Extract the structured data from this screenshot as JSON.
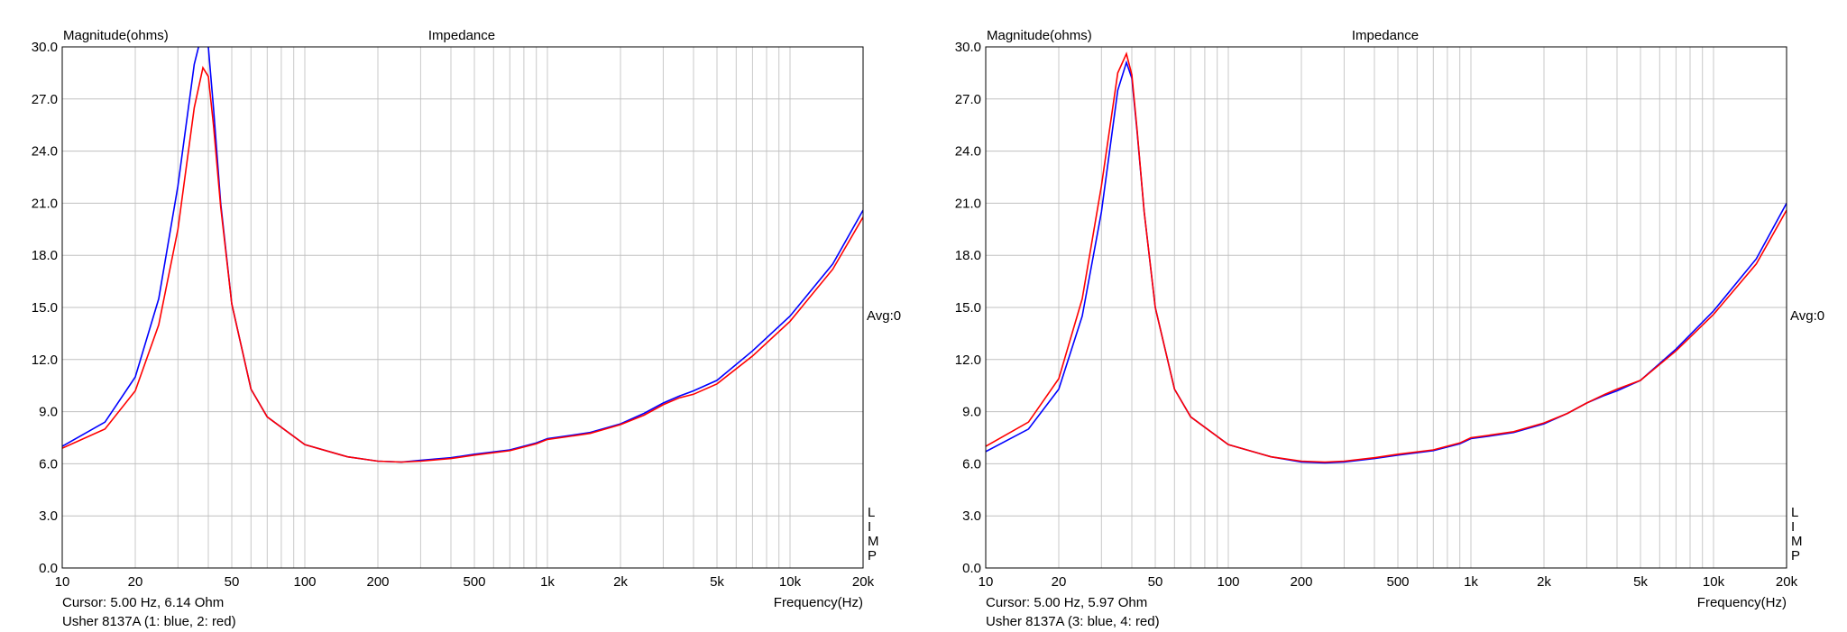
{
  "chart_data": [
    {
      "type": "line",
      "title": "Impedance",
      "ylabel": "Magnitude(ohms)",
      "xlabel": "Frequency(Hz)",
      "xscale": "log",
      "xlim": [
        10,
        20000
      ],
      "ylim": [
        0,
        30
      ],
      "grid": true,
      "xticks": [
        "10",
        "20",
        "50",
        "100",
        "200",
        "500",
        "1k",
        "2k",
        "5k",
        "10k",
        "20k"
      ],
      "yticks": [
        "0.0",
        "3.0",
        "6.0",
        "9.0",
        "12.0",
        "15.0",
        "18.0",
        "21.0",
        "24.0",
        "27.0",
        "30.0"
      ],
      "avg_label": "Avg:0",
      "side_letters": [
        "L",
        "I",
        "M",
        "P"
      ],
      "cursor": "Cursor: 5.00 Hz, 6.14 Ohm",
      "legend_text": "Usher 8137A (1: blue, 2: red)",
      "colors": {
        "blue": "#0000ff",
        "red": "#ff0000"
      },
      "series": [
        {
          "name": "1",
          "color": "blue",
          "x": [
            10,
            15,
            20,
            25,
            30,
            35,
            38,
            40,
            42,
            45,
            50,
            60,
            70,
            100,
            150,
            200,
            250,
            300,
            400,
            500,
            700,
            900,
            1000,
            1200,
            1500,
            2000,
            2500,
            3000,
            3500,
            4000,
            5000,
            7000,
            10000,
            15000,
            20000
          ],
          "y": [
            7.0,
            8.4,
            11.0,
            15.5,
            22.0,
            29.0,
            31.0,
            30.0,
            26.5,
            21.0,
            15.2,
            10.3,
            8.7,
            7.1,
            6.4,
            6.15,
            6.1,
            6.2,
            6.35,
            6.55,
            6.8,
            7.2,
            7.45,
            7.6,
            7.8,
            8.3,
            8.9,
            9.5,
            9.9,
            10.2,
            10.8,
            12.5,
            14.5,
            17.5,
            20.6
          ]
        },
        {
          "name": "2",
          "color": "red",
          "x": [
            10,
            15,
            20,
            25,
            30,
            35,
            38,
            40,
            42,
            45,
            50,
            60,
            70,
            100,
            150,
            200,
            250,
            300,
            400,
            500,
            700,
            900,
            1000,
            1200,
            1500,
            2000,
            2500,
            3000,
            3500,
            4000,
            5000,
            7000,
            10000,
            15000,
            20000
          ],
          "y": [
            6.9,
            8.0,
            10.2,
            14.0,
            19.5,
            26.5,
            28.8,
            28.3,
            25.5,
            20.8,
            15.2,
            10.3,
            8.7,
            7.1,
            6.4,
            6.15,
            6.1,
            6.15,
            6.3,
            6.5,
            6.75,
            7.15,
            7.4,
            7.55,
            7.75,
            8.25,
            8.8,
            9.4,
            9.8,
            10.0,
            10.6,
            12.2,
            14.2,
            17.2,
            20.2
          ]
        }
      ]
    },
    {
      "type": "line",
      "title": "Impedance",
      "ylabel": "Magnitude(ohms)",
      "xlabel": "Frequency(Hz)",
      "xscale": "log",
      "xlim": [
        10,
        20000
      ],
      "ylim": [
        0,
        30
      ],
      "grid": true,
      "xticks": [
        "10",
        "20",
        "50",
        "100",
        "200",
        "500",
        "1k",
        "2k",
        "5k",
        "10k",
        "20k"
      ],
      "yticks": [
        "0.0",
        "3.0",
        "6.0",
        "9.0",
        "12.0",
        "15.0",
        "18.0",
        "21.0",
        "24.0",
        "27.0",
        "30.0"
      ],
      "avg_label": "Avg:0",
      "side_letters": [
        "L",
        "I",
        "M",
        "P"
      ],
      "cursor": "Cursor: 5.00 Hz, 5.97 Ohm",
      "legend_text": "Usher 8137A (3: blue, 4: red)",
      "colors": {
        "blue": "#0000ff",
        "red": "#ff0000"
      },
      "series": [
        {
          "name": "3",
          "color": "blue",
          "x": [
            10,
            15,
            20,
            25,
            30,
            35,
            38,
            40,
            42,
            45,
            50,
            60,
            70,
            100,
            150,
            200,
            250,
            300,
            400,
            500,
            700,
            900,
            1000,
            1200,
            1500,
            2000,
            2500,
            3000,
            3500,
            4000,
            5000,
            7000,
            10000,
            15000,
            20000
          ],
          "y": [
            6.7,
            8.0,
            10.3,
            14.5,
            20.5,
            27.5,
            29.1,
            28.2,
            25.2,
            20.5,
            15.0,
            10.3,
            8.7,
            7.1,
            6.4,
            6.1,
            6.05,
            6.1,
            6.3,
            6.5,
            6.75,
            7.15,
            7.45,
            7.6,
            7.8,
            8.3,
            8.9,
            9.5,
            9.9,
            10.2,
            10.8,
            12.6,
            14.8,
            17.8,
            21.0
          ]
        },
        {
          "name": "4",
          "color": "red",
          "x": [
            10,
            15,
            20,
            25,
            30,
            35,
            38,
            40,
            42,
            45,
            50,
            60,
            70,
            100,
            150,
            200,
            250,
            300,
            400,
            500,
            700,
            900,
            1000,
            1200,
            1500,
            2000,
            2500,
            3000,
            3500,
            4000,
            5000,
            7000,
            10000,
            15000,
            20000
          ],
          "y": [
            7.0,
            8.4,
            10.9,
            15.5,
            22.0,
            28.5,
            29.6,
            28.4,
            25.3,
            20.5,
            15.0,
            10.3,
            8.7,
            7.1,
            6.4,
            6.15,
            6.1,
            6.15,
            6.35,
            6.55,
            6.8,
            7.2,
            7.5,
            7.65,
            7.85,
            8.35,
            8.9,
            9.5,
            9.95,
            10.3,
            10.8,
            12.5,
            14.6,
            17.5,
            20.6
          ]
        }
      ]
    }
  ]
}
